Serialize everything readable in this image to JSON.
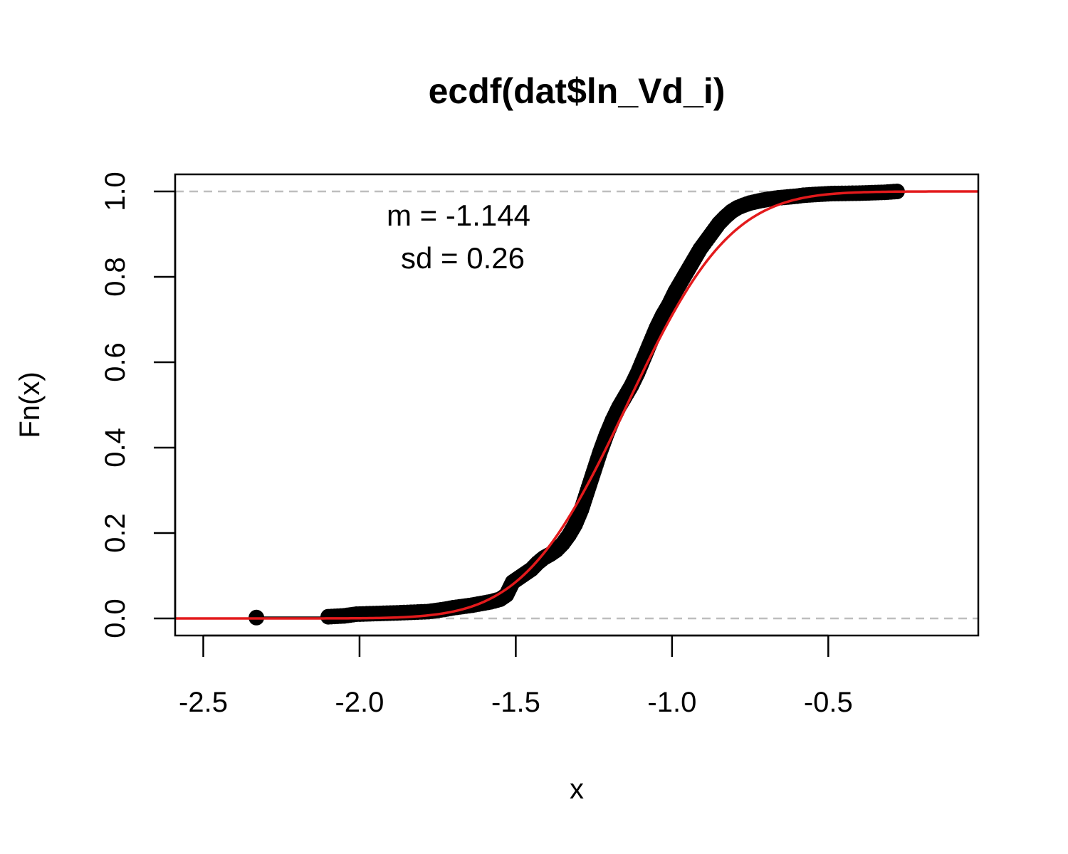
{
  "chart_data": {
    "type": "line",
    "title": "ecdf(dat$ln_Vd_i)",
    "xlabel": "x",
    "ylabel": "Fn(x)",
    "xlim": [
      -2.59,
      -0.02
    ],
    "ylim": [
      -0.04,
      1.04
    ],
    "x_ticks": [
      "-2.5",
      "-2.0",
      "-1.5",
      "-1.0",
      "-0.5"
    ],
    "x_tick_values": [
      -2.5,
      -2.0,
      -1.5,
      -1.0,
      -0.5
    ],
    "y_ticks": [
      "0.0",
      "0.2",
      "0.4",
      "0.6",
      "0.8",
      "1.0"
    ],
    "y_tick_values": [
      0.0,
      0.2,
      0.4,
      0.6,
      0.8,
      1.0
    ],
    "reference_lines": [
      0,
      1
    ],
    "annotations": [
      "m = -1.144",
      "sd = 0.26"
    ],
    "fit": {
      "distribution": "normal",
      "mean": -1.144,
      "sd": 0.26
    },
    "grid": false,
    "colors": {
      "points": "#000000",
      "fit_line": "#e31a1c",
      "reference_lines": "#bebebe"
    },
    "series": [
      {
        "kind": "ecdf-points",
        "points": [
          [
            -2.33,
            0.002
          ],
          [
            -2.1,
            0.004
          ],
          [
            -2.05,
            0.006
          ],
          [
            -2.03,
            0.008
          ],
          [
            -2.01,
            0.01
          ],
          [
            -1.88,
            0.013
          ],
          [
            -1.78,
            0.016
          ],
          [
            -1.76,
            0.018
          ],
          [
            -1.73,
            0.021
          ],
          [
            -1.7,
            0.025
          ],
          [
            -1.67,
            0.028
          ],
          [
            -1.64,
            0.031
          ],
          [
            -1.61,
            0.035
          ],
          [
            -1.58,
            0.039
          ],
          [
            -1.55,
            0.045
          ],
          [
            -1.53,
            0.055
          ],
          [
            -1.52,
            0.07
          ],
          [
            -1.51,
            0.085
          ],
          [
            -1.49,
            0.095
          ],
          [
            -1.47,
            0.105
          ],
          [
            -1.45,
            0.115
          ],
          [
            -1.43,
            0.13
          ],
          [
            -1.41,
            0.142
          ],
          [
            -1.39,
            0.15
          ],
          [
            -1.37,
            0.16
          ],
          [
            -1.35,
            0.175
          ],
          [
            -1.33,
            0.195
          ],
          [
            -1.31,
            0.22
          ],
          [
            -1.29,
            0.255
          ],
          [
            -1.27,
            0.3
          ],
          [
            -1.25,
            0.345
          ],
          [
            -1.23,
            0.39
          ],
          [
            -1.21,
            0.43
          ],
          [
            -1.19,
            0.465
          ],
          [
            -1.17,
            0.495
          ],
          [
            -1.15,
            0.52
          ],
          [
            -1.13,
            0.545
          ],
          [
            -1.11,
            0.575
          ],
          [
            -1.09,
            0.61
          ],
          [
            -1.07,
            0.645
          ],
          [
            -1.05,
            0.68
          ],
          [
            -1.03,
            0.71
          ],
          [
            -1.01,
            0.735
          ],
          [
            -0.99,
            0.765
          ],
          [
            -0.97,
            0.79
          ],
          [
            -0.95,
            0.815
          ],
          [
            -0.93,
            0.84
          ],
          [
            -0.91,
            0.865
          ],
          [
            -0.89,
            0.885
          ],
          [
            -0.87,
            0.905
          ],
          [
            -0.85,
            0.925
          ],
          [
            -0.83,
            0.94
          ],
          [
            -0.81,
            0.953
          ],
          [
            -0.79,
            0.962
          ],
          [
            -0.77,
            0.968
          ],
          [
            -0.75,
            0.973
          ],
          [
            -0.72,
            0.978
          ],
          [
            -0.69,
            0.982
          ],
          [
            -0.66,
            0.985
          ],
          [
            -0.63,
            0.987
          ],
          [
            -0.6,
            0.989
          ],
          [
            -0.58,
            0.991
          ],
          [
            -0.54,
            0.993
          ],
          [
            -0.49,
            0.995
          ],
          [
            -0.4,
            0.996
          ],
          [
            -0.32,
            0.998
          ],
          [
            -0.28,
            1.0
          ]
        ]
      },
      {
        "kind": "normal-cdf-curve",
        "name": ""
      }
    ]
  }
}
